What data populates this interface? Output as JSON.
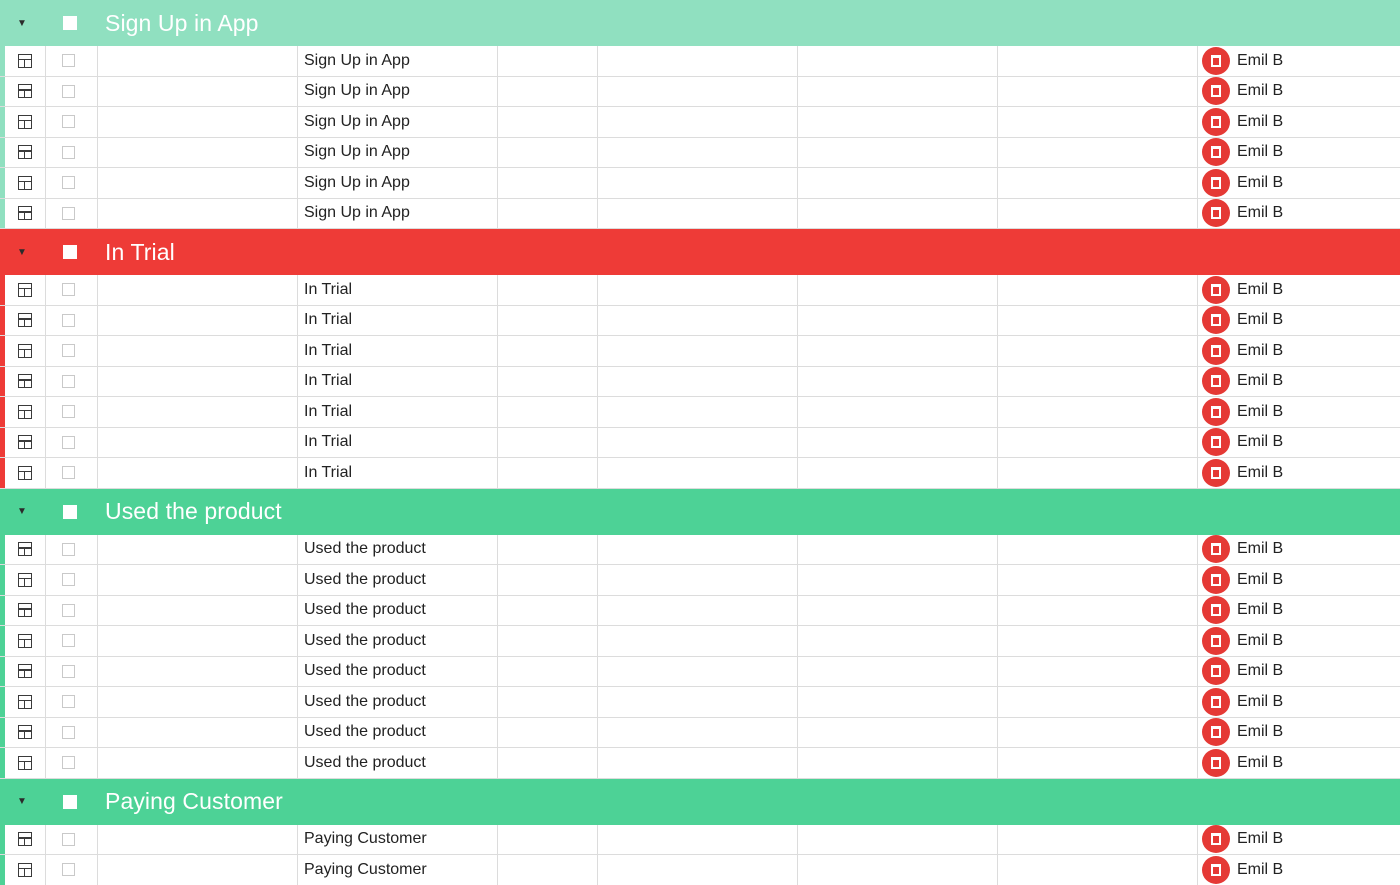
{
  "owner_name": "Emil B",
  "groups": [
    {
      "title": "Sign Up in App",
      "color": "#90e0c0",
      "stripe": "#90e0c0",
      "row_count": 6
    },
    {
      "title": "In Trial",
      "color": "#ee3b37",
      "stripe": "#ee3b37",
      "row_count": 7
    },
    {
      "title": "Used the product",
      "color": "#4dd296",
      "stripe": "#4dd296",
      "row_count": 8
    },
    {
      "title": "Paying Customer",
      "color": "#4dd296",
      "stripe": "#4dd296",
      "row_count": 2
    }
  ],
  "icons": {
    "collapse": "triangle-down-icon",
    "open_item": "open-item-icon",
    "avatar": "avatar"
  }
}
